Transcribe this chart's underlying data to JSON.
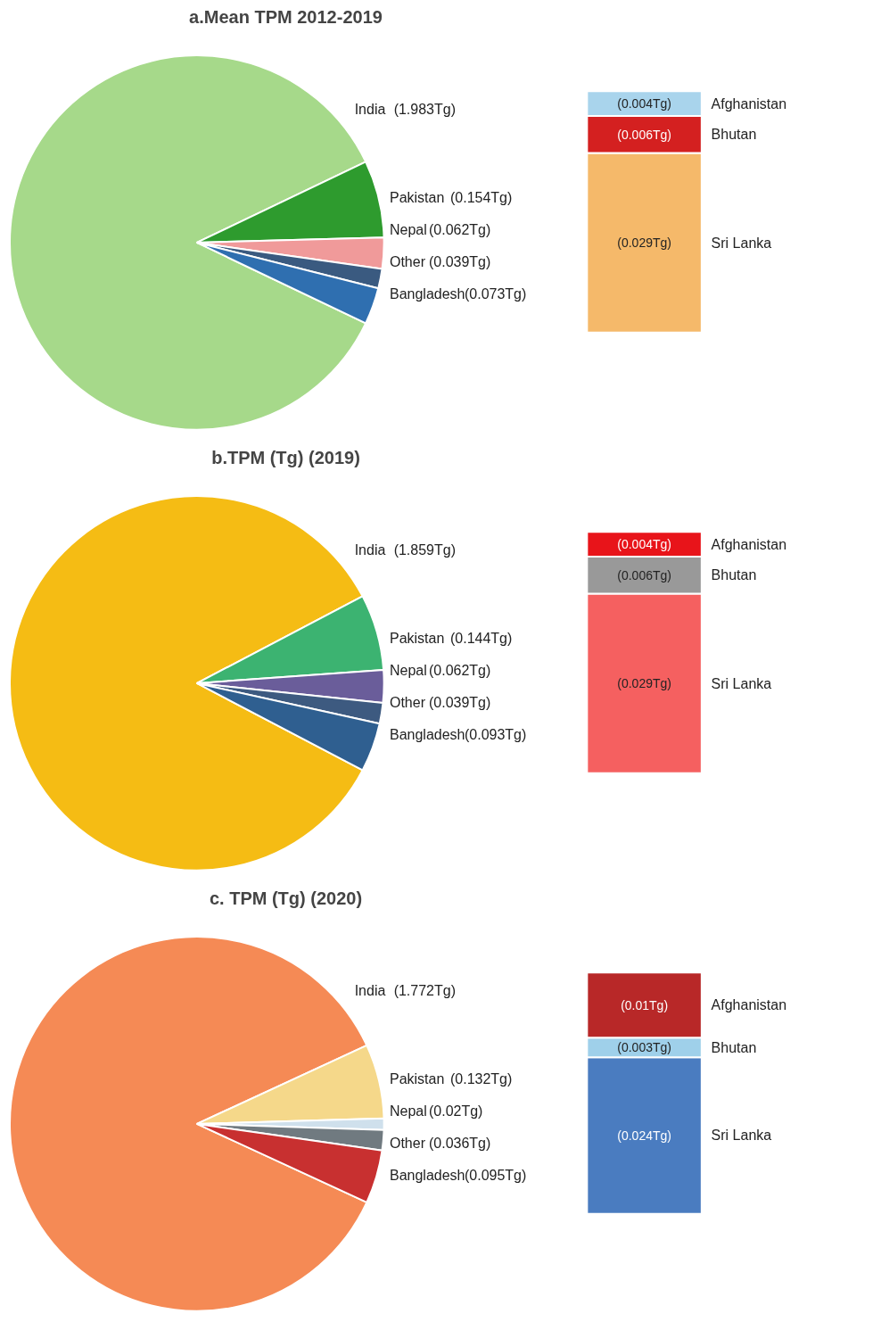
{
  "chart_data": [
    {
      "type": "pie",
      "title": "a.Mean TPM 2012-2019",
      "categories": [
        "India",
        "Pakistan",
        "Nepal",
        "Other",
        "Bangladesh"
      ],
      "values": [
        1.983,
        0.154,
        0.062,
        0.039,
        0.073
      ],
      "colors": [
        "#a6d98a",
        "#2e9b2e",
        "#f09a9a",
        "#3a5a80",
        "#2f6fb0"
      ],
      "value_labels": [
        "(1.983Tg)",
        "(0.154Tg)",
        "(0.062Tg)",
        "(0.039Tg)",
        "(0.073Tg)"
      ]
    },
    {
      "type": "bar",
      "stacked": true,
      "categories": [
        null
      ],
      "series": [
        {
          "name": "Sri Lanka",
          "color": "#f5b96a",
          "values": [
            0.029
          ],
          "value_labels": [
            "(0.029Tg)"
          ]
        },
        {
          "name": "Bhutan",
          "color": "#d42020",
          "values": [
            0.006
          ],
          "value_labels": [
            "(0.006Tg)"
          ]
        },
        {
          "name": "Afghanistan",
          "color": "#a9d4ec",
          "values": [
            0.004
          ],
          "value_labels": [
            "(0.004Tg)"
          ]
        }
      ]
    },
    {
      "type": "pie",
      "title": "b.TPM (Tg) (2019)",
      "categories": [
        "India",
        "Pakistan",
        "Nepal",
        "Other",
        "Bangladesh"
      ],
      "values": [
        1.859,
        0.144,
        0.062,
        0.039,
        0.093
      ],
      "colors": [
        "#f5bc14",
        "#3cb371",
        "#6a5d9a",
        "#3d5a80",
        "#2f5f90"
      ],
      "value_labels": [
        "(1.859Tg)",
        "(0.144Tg)",
        "(0.062Tg)",
        "(0.039Tg)",
        "(0.093Tg)"
      ]
    },
    {
      "type": "bar",
      "stacked": true,
      "categories": [
        null
      ],
      "series": [
        {
          "name": "Sri Lanka",
          "color": "#f56060",
          "values": [
            0.029
          ],
          "value_labels": [
            "(0.029Tg)"
          ]
        },
        {
          "name": "Bhutan",
          "color": "#999999",
          "values": [
            0.006
          ],
          "value_labels": [
            "(0.006Tg)"
          ]
        },
        {
          "name": "Afghanistan",
          "color": "#e8141a",
          "values": [
            0.004
          ],
          "value_labels": [
            "(0.004Tg)"
          ]
        }
      ]
    },
    {
      "type": "pie",
      "title": "c. TPM (Tg) (2020)",
      "categories": [
        "India",
        "Pakistan",
        "Nepal",
        "Other",
        "Bangladesh"
      ],
      "values": [
        1.772,
        0.132,
        0.02,
        0.036,
        0.095
      ],
      "colors": [
        "#f58a55",
        "#f5d88a",
        "#cfe0ec",
        "#707a80",
        "#c83030"
      ],
      "value_labels": [
        "(1.772Tg)",
        "(0.132Tg)",
        "(0.02Tg)",
        "(0.036Tg)",
        "(0.095Tg)"
      ]
    },
    {
      "type": "bar",
      "stacked": true,
      "categories": [
        null
      ],
      "series": [
        {
          "name": "Sri Lanka",
          "color": "#4a7cc0",
          "values": [
            0.024
          ],
          "value_labels": [
            "(0.024Tg)"
          ]
        },
        {
          "name": "Bhutan",
          "color": "#9fd0ea",
          "values": [
            0.003
          ],
          "value_labels": [
            "(0.003Tg)"
          ]
        },
        {
          "name": "Afghanistan",
          "color": "#b82828",
          "values": [
            0.01
          ],
          "value_labels": [
            "(0.01Tg)"
          ]
        }
      ]
    }
  ]
}
